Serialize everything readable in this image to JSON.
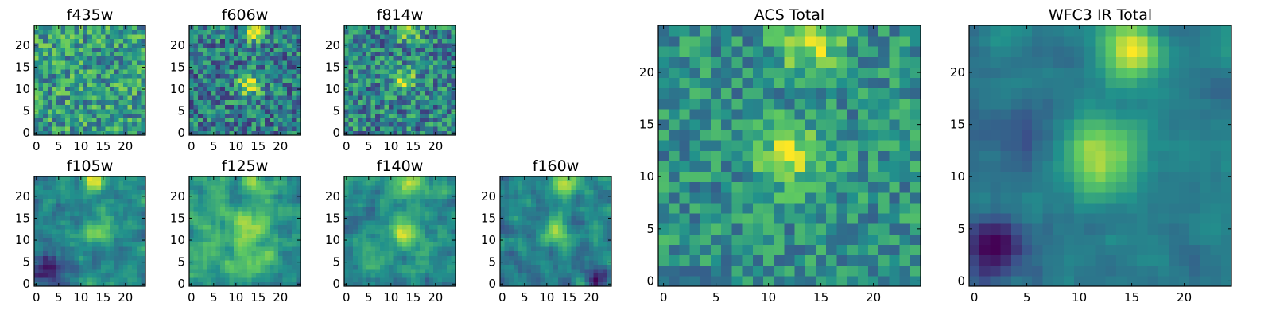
{
  "figure": {
    "colormap": "viridis",
    "colormap_stops": [
      "#440154",
      "#3b528b",
      "#21918c",
      "#5ec962",
      "#fde725"
    ],
    "axis_frame_color": "#000000"
  },
  "chart_data": [
    {
      "id": "f435w",
      "type": "heatmap",
      "title": "f435w",
      "grid_size": 25,
      "xlim": [
        -0.5,
        24.5
      ],
      "ylim": [
        -0.5,
        24.5
      ],
      "xticks": [
        0,
        5,
        10,
        15,
        20
      ],
      "yticks": [
        0,
        5,
        10,
        15,
        20
      ],
      "texture": "fine noise, no clear source",
      "grid": false
    },
    {
      "id": "f606w",
      "type": "heatmap",
      "title": "f606w",
      "grid_size": 25,
      "xlim": [
        -0.5,
        24.5
      ],
      "ylim": [
        -0.5,
        24.5
      ],
      "xticks": [
        0,
        5,
        10,
        15,
        20
      ],
      "yticks": [
        0,
        5,
        10,
        15,
        20
      ],
      "texture": "bright source at top center and center",
      "grid": false
    },
    {
      "id": "f814w",
      "type": "heatmap",
      "title": "f814w",
      "grid_size": 25,
      "xlim": [
        -0.5,
        24.5
      ],
      "ylim": [
        -0.5,
        24.5
      ],
      "xticks": [
        0,
        5,
        10,
        15,
        20
      ],
      "yticks": [
        0,
        5,
        10,
        15,
        20
      ],
      "texture": "faint source at top center and center",
      "grid": false
    },
    {
      "id": "f105w",
      "type": "heatmap",
      "title": "f105w",
      "grid_size": 25,
      "xlim": [
        -0.5,
        24.5
      ],
      "ylim": [
        -0.5,
        24.5
      ],
      "xticks": [
        0,
        5,
        10,
        15,
        20
      ],
      "yticks": [
        0,
        5,
        10,
        15,
        20
      ],
      "texture": "smooth, source near (14,12) and top",
      "grid": false
    },
    {
      "id": "f125w",
      "type": "heatmap",
      "title": "f125w",
      "grid_size": 25,
      "xlim": [
        -0.5,
        24.5
      ],
      "ylim": [
        -0.5,
        24.5
      ],
      "xticks": [
        0,
        5,
        10,
        15,
        20
      ],
      "yticks": [
        0,
        5,
        10,
        15,
        20
      ],
      "texture": "smooth, diffuse bright",
      "grid": false
    },
    {
      "id": "f140w",
      "type": "heatmap",
      "title": "f140w",
      "grid_size": 25,
      "xlim": [
        -0.5,
        24.5
      ],
      "ylim": [
        -0.5,
        24.5
      ],
      "xticks": [
        0,
        5,
        10,
        15,
        20
      ],
      "yticks": [
        0,
        5,
        10,
        15,
        20
      ],
      "texture": "smooth, source near (13,12) and top",
      "grid": false
    },
    {
      "id": "f160w",
      "type": "heatmap",
      "title": "f160w",
      "grid_size": 25,
      "xlim": [
        -0.5,
        24.5
      ],
      "ylim": [
        -0.5,
        24.5
      ],
      "xticks": [
        0,
        5,
        10,
        15,
        20
      ],
      "yticks": [
        0,
        5,
        10,
        15,
        20
      ],
      "texture": "smooth, source near (12,12) and top",
      "grid": false
    },
    {
      "id": "acs_total",
      "type": "heatmap",
      "title": "ACS Total",
      "grid_size": 25,
      "xlim": [
        -0.5,
        24.5
      ],
      "ylim": [
        -0.5,
        24.5
      ],
      "xticks": [
        0,
        5,
        10,
        15,
        20
      ],
      "yticks": [
        0,
        5,
        10,
        15,
        20
      ],
      "texture": "noisy green, source at (12,12) and top (14,23)",
      "grid": false
    },
    {
      "id": "wfc3_ir_total",
      "type": "heatmap",
      "title": "WFC3 IR Total",
      "grid_size": 25,
      "xlim": [
        -0.5,
        24.5
      ],
      "ylim": [
        -0.5,
        24.5
      ],
      "xticks": [
        0,
        5,
        10,
        15,
        20
      ],
      "yticks": [
        0,
        5,
        10,
        15,
        20
      ],
      "texture": "smooth, source at (12,12) and top (15,22), dark lower-left",
      "grid": false
    }
  ]
}
